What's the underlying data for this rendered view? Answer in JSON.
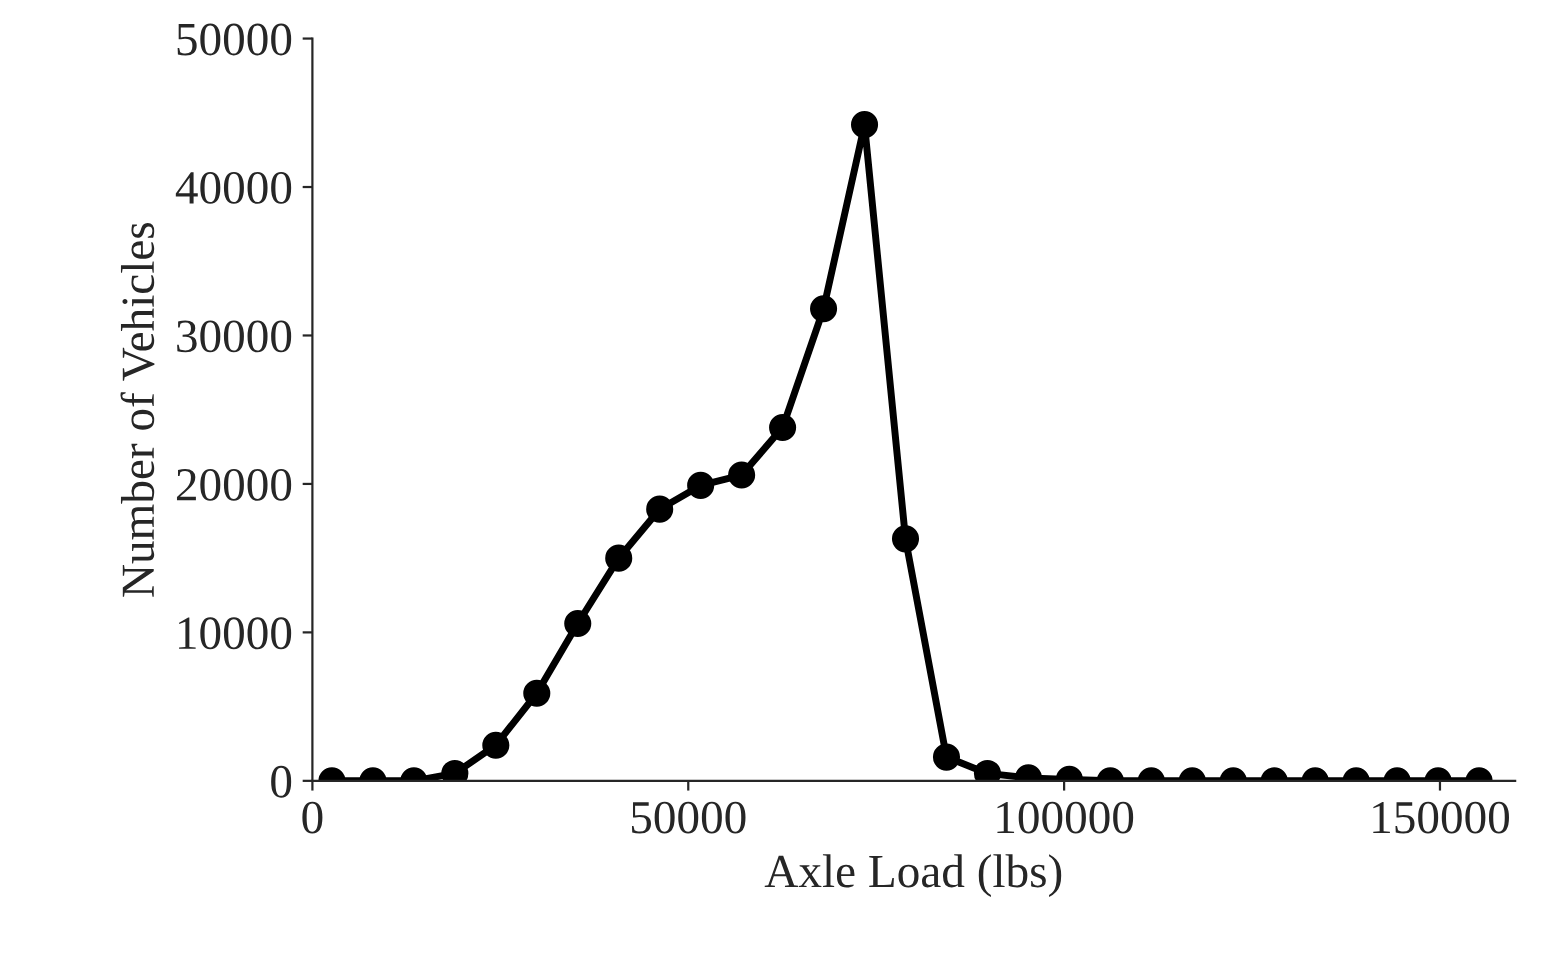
{
  "chart_data": {
    "type": "line",
    "xlabel": "Axle Load (lbs)",
    "ylabel": "Number of Vehicles",
    "x": [
      2600,
      8050,
      13500,
      18950,
      24400,
      29850,
      35300,
      40750,
      46200,
      51650,
      57100,
      62550,
      68000,
      73450,
      78900,
      84350,
      89800,
      95250,
      100700,
      106150,
      111600,
      117050,
      122500,
      127950,
      133400,
      138850,
      144300,
      149750,
      155200
    ],
    "series": [
      {
        "color": "#000000",
        "values": [
          0,
          0,
          0,
          500,
          2400,
          5900,
          10600,
          15000,
          18300,
          19900,
          20600,
          23800,
          31800,
          44200,
          16300,
          1600,
          500,
          200,
          100,
          0,
          0,
          0,
          0,
          0,
          0,
          0,
          0,
          0,
          0
        ]
      }
    ],
    "xlim": [
      0,
      160000
    ],
    "xticks": [
      0,
      50000,
      100000,
      150000
    ],
    "ylim": [
      0,
      50000
    ],
    "yticks": [
      0,
      10000,
      20000,
      30000,
      40000,
      50000
    ],
    "marker": "circle",
    "line_style": "solid",
    "grid": false,
    "legend": false
  }
}
